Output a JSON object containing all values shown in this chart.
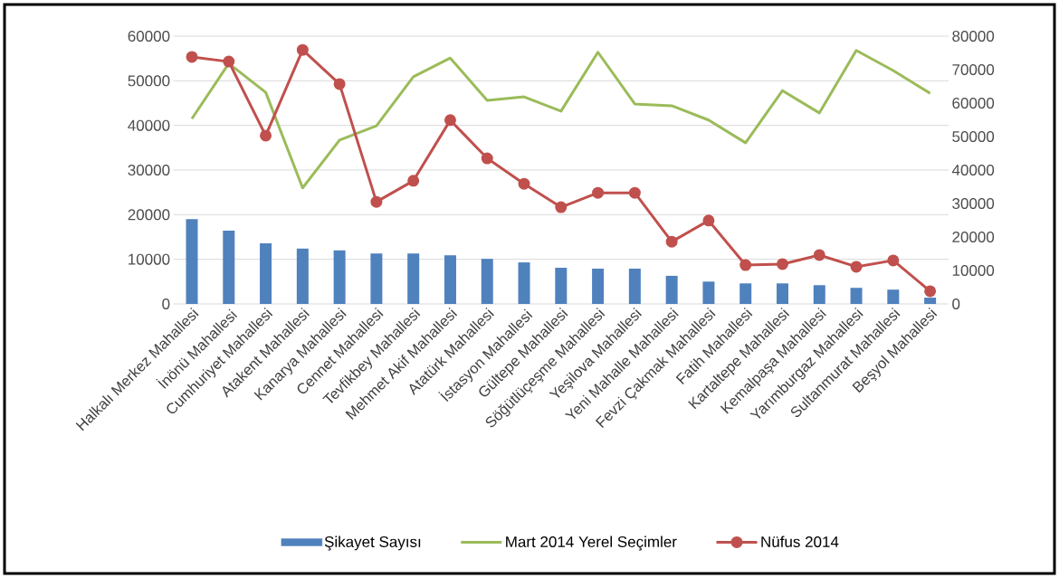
{
  "chart_data": {
    "type": "bar",
    "categories": [
      "Halkalı Merkez Mahallesi",
      "İnönü Mahallesi",
      "Cumhuriyet Mahallesi",
      "Atakent Mahallesi",
      "Kanarya Mahallesi",
      "Cennet Mahallesi",
      "Tevfikbey Mahallesi",
      "Mehmet Akif Mahallesi",
      "Atatürk Mahallesi",
      "İstasyon Mahallesi",
      "Gültepe Mahallesi",
      "Söğütlüçeşme Mahallesi",
      "Yeşilova Mahallesi",
      "Yeni Mahalle Mahallesi",
      "Fevzi Çakmak Mahallesi",
      "Fatih Mahallesi",
      "Kartaltepe Mahallesi",
      "Kemalpaşa Mahallesi",
      "Yarımburgaz Mahallesi",
      "Sultanmurat Mahallesi",
      "Beşyol Mahallesi"
    ],
    "series": [
      {
        "name": "Şikayet Sayısı",
        "color": "#4f81bd",
        "values": [
          19000,
          16400,
          13600,
          12400,
          12000,
          11300,
          11300,
          10900,
          10100,
          9300,
          8100,
          7900,
          7900,
          6300,
          5000,
          4600,
          4600,
          4200,
          3600,
          3200,
          1400
        ]
      },
      {
        "name": "Mart 2014 Yerel Seçimler",
        "type": "line",
        "color": "#9bbb59",
        "values": [
          41500,
          53900,
          47400,
          26000,
          36700,
          39900,
          50900,
          55100,
          45600,
          46400,
          43200,
          56400,
          44800,
          44400,
          41200,
          36100,
          47800,
          42800,
          56800,
          52300,
          47200
        ]
      },
      {
        "name": "Nüfus 2014",
        "type": "line",
        "axis": "y2",
        "marker": "circle",
        "color": "#c0504d",
        "values": [
          73800,
          72400,
          50300,
          75900,
          65700,
          30500,
          36800,
          54900,
          43500,
          35900,
          28900,
          33200,
          33200,
          18600,
          24900,
          11600,
          11900,
          14600,
          11100,
          13000,
          3800
        ]
      }
    ],
    "ylim": [
      0,
      60000
    ],
    "yticks": [
      0,
      10000,
      20000,
      30000,
      40000,
      50000,
      60000
    ],
    "y2lim": [
      0,
      80000
    ],
    "y2ticks": [
      0,
      10000,
      20000,
      30000,
      40000,
      50000,
      60000,
      70000,
      80000
    ],
    "grid": "y",
    "legend": "bottom"
  }
}
